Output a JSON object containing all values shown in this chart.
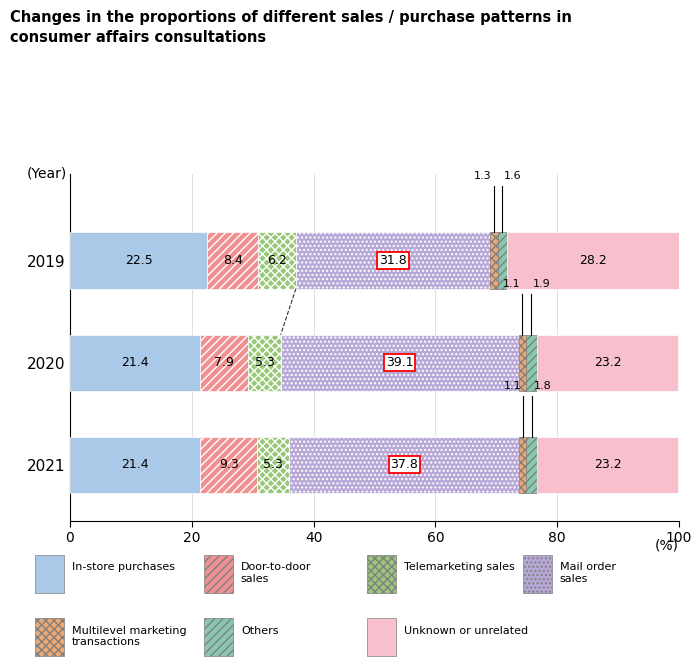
{
  "title": "Changes in the proportions of different sales / purchase patterns in\nconsumer affairs consultations",
  "years": [
    "2019",
    "2020",
    "2021"
  ],
  "categories": [
    "In-store purchases",
    "Door-to-door sales",
    "Telemarketing sales",
    "Mail order sales",
    "Multilevel marketing transactions",
    "Others",
    "Unknown or unrelated"
  ],
  "values": {
    "2019": [
      22.5,
      8.4,
      6.2,
      31.8,
      1.3,
      1.6,
      28.2
    ],
    "2020": [
      21.4,
      7.9,
      5.3,
      39.1,
      1.1,
      1.9,
      23.2
    ],
    "2021": [
      21.4,
      9.3,
      5.3,
      37.8,
      1.1,
      1.8,
      23.2
    ]
  },
  "color_list": [
    "#aac8e8",
    "#f09090",
    "#98c878",
    "#b8a8d8",
    "#f0a870",
    "#88c8b0",
    "#f8c0cc"
  ],
  "hatch_list": [
    "",
    "////",
    "xxxx",
    "....",
    "xxxx",
    "////",
    "^^^^"
  ],
  "highlight_category": "Mail order sales",
  "background_color": "#ffffff",
  "title_bg_color": "#cce0f0",
  "legend_labels": [
    "In-store purchases",
    "Door-to-door\nsales",
    "Telemarketing sales",
    "Mail order\nsales",
    "Multilevel marketing\ntransactions",
    "Others",
    "Unknown or unrelated",
    ""
  ],
  "xlim": [
    0,
    100
  ],
  "xticks": [
    0,
    20,
    40,
    60,
    80,
    100
  ]
}
